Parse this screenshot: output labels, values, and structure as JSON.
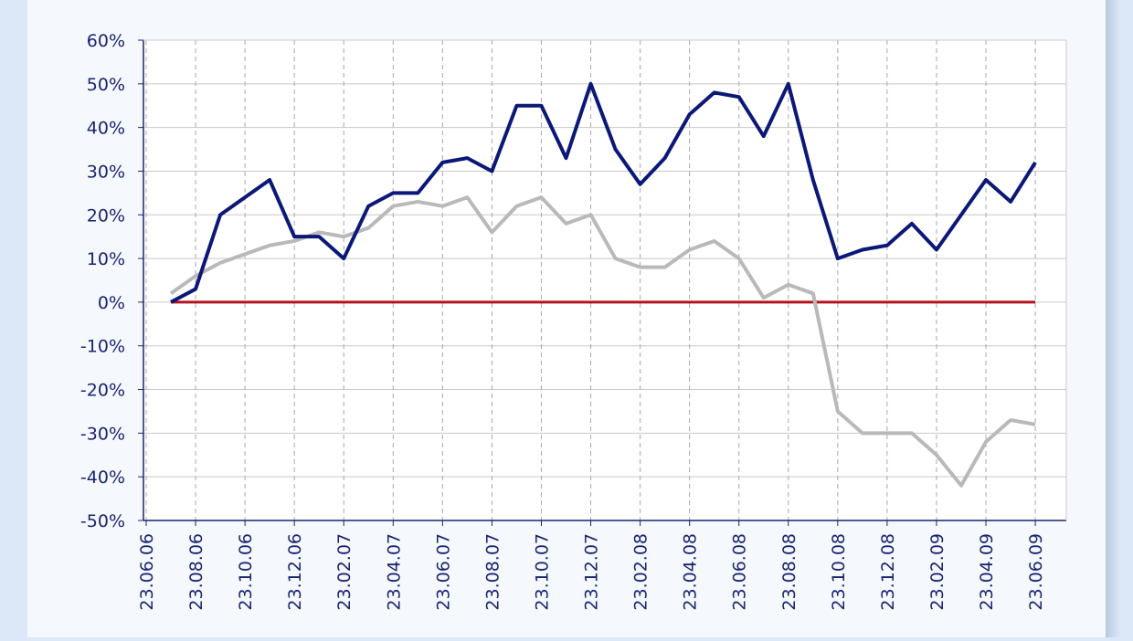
{
  "chart_data": {
    "type": "line",
    "x": [
      "23.06.06",
      null,
      "23.08.06",
      null,
      "23.10.06",
      null,
      "23.12.06",
      null,
      "23.02.07",
      null,
      "23.04.07",
      null,
      "23.06.07",
      null,
      "23.08.07",
      null,
      "23.10.07",
      null,
      "23.12.07",
      null,
      "23.02.08",
      null,
      "23.04.08",
      null,
      "23.06.08",
      null,
      "23.08.08",
      null,
      "23.10.08",
      null,
      "23.12.08",
      null,
      "23.02.09",
      null,
      "23.04.09",
      null,
      "23.06.09"
    ],
    "series": [
      {
        "color": "#b9b9b9",
        "values": [
          null,
          2,
          6,
          9,
          11,
          13,
          14,
          16,
          15,
          17,
          22,
          23,
          22,
          24,
          16,
          22,
          24,
          18,
          20,
          10,
          8,
          8,
          12,
          14,
          10,
          1,
          4,
          2,
          -25,
          -30,
          -30,
          -30,
          -35,
          -42,
          -32,
          -27,
          -28
        ]
      },
      {
        "color": "#0b1878",
        "values": [
          null,
          0,
          3,
          20,
          24,
          28,
          15,
          15,
          10,
          22,
          25,
          25,
          32,
          33,
          30,
          45,
          45,
          33,
          50,
          35,
          27,
          33,
          43,
          48,
          47,
          38,
          50,
          28,
          10,
          12,
          13,
          18,
          12,
          20,
          28,
          23,
          32
        ]
      }
    ],
    "reference_line": {
      "value": 0,
      "color": "#b5121b"
    },
    "ylim": [
      -50,
      60
    ],
    "yticks": [
      {
        "value": -50,
        "label": "-50%"
      },
      {
        "value": -40,
        "label": "-40%"
      },
      {
        "value": -30,
        "label": "-30%"
      },
      {
        "value": -20,
        "label": "-20%"
      },
      {
        "value": -10,
        "label": "-10%"
      },
      {
        "value": 0,
        "label": "0%"
      },
      {
        "value": 10,
        "label": "10%"
      },
      {
        "value": 20,
        "label": "20%"
      },
      {
        "value": 30,
        "label": "30%"
      },
      {
        "value": 40,
        "label": "40%"
      },
      {
        "value": 50,
        "label": "50%"
      },
      {
        "value": 60,
        "label": "60%"
      }
    ],
    "grid": true
  }
}
